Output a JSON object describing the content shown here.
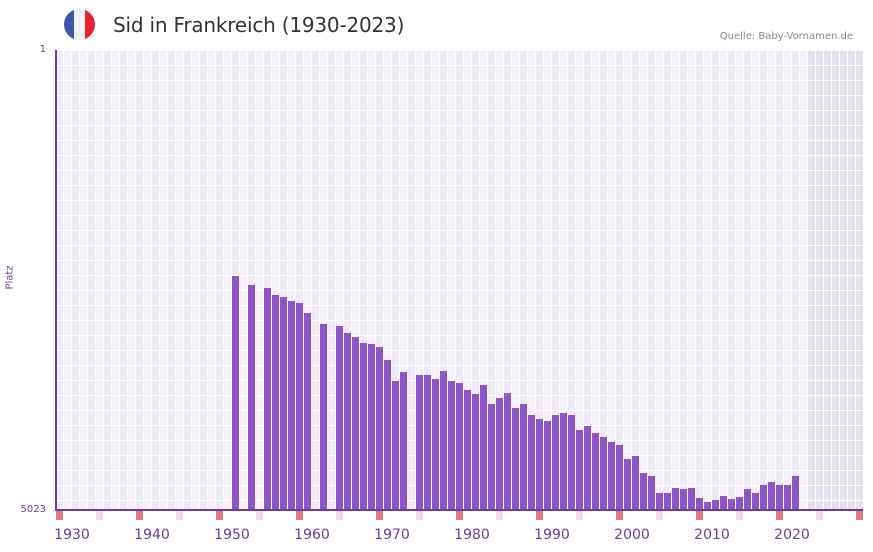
{
  "header": {
    "title": "Sid in Frankreich (1930-2023)",
    "source": "Quelle: Baby-Vornamen.de",
    "flag_colors": [
      "#3a58a8",
      "#f1f1f5",
      "#e8232f"
    ]
  },
  "colors": {
    "bar": "#8e55c8",
    "axis": "#6a3d9a",
    "grid_bg_a": "#efeafa",
    "grid_bg_b": "#f4f1fc",
    "future_bg": "#e4e0ee",
    "decade_marker": "#e07a80",
    "halfdecade_marker": "#f6d8e0"
  },
  "chart_data": {
    "type": "bar",
    "title": "Sid in Frankreich (1930-2023)",
    "xlabel": "",
    "ylabel": "Platz",
    "y_inverted": true,
    "ylim": [
      1,
      5023
    ],
    "y_ticks": [
      "1",
      "5023"
    ],
    "x_ticks": [
      "1930",
      "1940",
      "1950",
      "1960",
      "1970",
      "1980",
      "1990",
      "2000",
      "2010",
      "2020"
    ],
    "x_range": [
      1928,
      2028
    ],
    "source": "Quelle: Baby-Vornamen.de",
    "grid": true,
    "legend": null,
    "x": [
      1950,
      1952,
      1954,
      1955,
      1956,
      1957,
      1958,
      1959,
      1961,
      1963,
      1964,
      1965,
      1966,
      1967,
      1968,
      1969,
      1970,
      1971,
      1973,
      1974,
      1975,
      1976,
      1977,
      1978,
      1979,
      1980,
      1981,
      1982,
      1983,
      1984,
      1985,
      1986,
      1987,
      1988,
      1989,
      1990,
      1991,
      1992,
      1993,
      1994,
      1995,
      1996,
      1997,
      1998,
      1999,
      2000,
      2001,
      2002,
      2003,
      2004,
      2005,
      2006,
      2007,
      2008,
      2009,
      2010,
      2011,
      2012,
      2013,
      2014,
      2015,
      2016,
      2017,
      2018,
      2019,
      2020
    ],
    "values": [
      2468,
      2566,
      2599,
      2676,
      2698,
      2741,
      2763,
      2872,
      2992,
      3014,
      3090,
      3134,
      3200,
      3211,
      3243,
      3385,
      3614,
      3516,
      3549,
      3549,
      3593,
      3506,
      3614,
      3636,
      3713,
      3756,
      3658,
      3866,
      3800,
      3745,
      3909,
      3866,
      3986,
      4029,
      4051,
      3986,
      3964,
      3986,
      4149,
      4106,
      4182,
      4226,
      4281,
      4313,
      4466,
      4433,
      4619,
      4652,
      4837,
      4837,
      4783,
      4794,
      4783,
      4892,
      4935,
      4914,
      4870,
      4903,
      4881,
      4794,
      4837,
      4750,
      4717,
      4750,
      4750,
      4652
    ]
  }
}
